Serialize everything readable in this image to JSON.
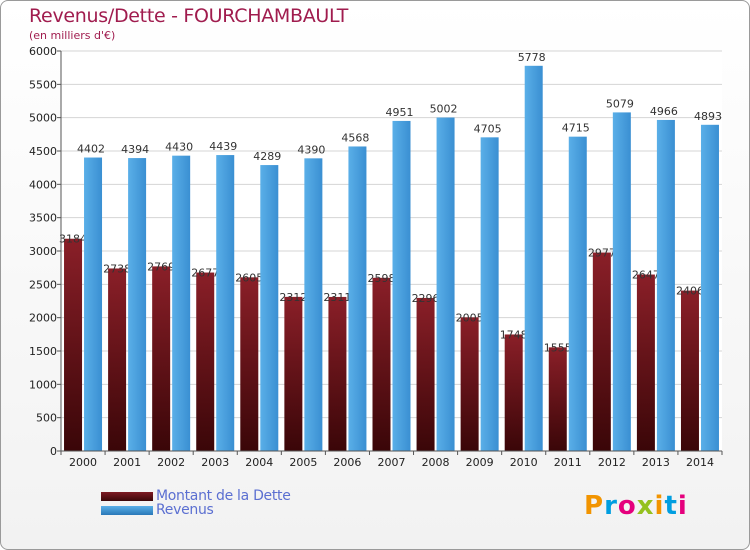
{
  "title": "Revenus/Dette - FOURCHAMBAULT",
  "subtitle": "(en milliers d'€)",
  "brand": {
    "letters": [
      "P",
      "r",
      "o",
      "x",
      "i",
      "t",
      "i"
    ],
    "colors": [
      "#f29400",
      "#009ee0",
      "#e5007d",
      "#95c11f",
      "#f29400",
      "#009ee0",
      "#e5007d"
    ]
  },
  "colors": {
    "debt": "#7d1a22",
    "debt_light": "#3a0608",
    "revenue": "#4ea3e0",
    "revenue_dark": "#2a78b8",
    "title": "#a01c4e",
    "legend_text": "#5b6fd1"
  },
  "chart_data": {
    "type": "bar",
    "categories": [
      "2000",
      "2001",
      "2002",
      "2003",
      "2004",
      "2005",
      "2006",
      "2007",
      "2008",
      "2009",
      "2010",
      "2011",
      "2012",
      "2013",
      "2014"
    ],
    "series": [
      {
        "name": "Montant de la Dette",
        "values": [
          3184,
          2738,
          2769,
          2677,
          2605,
          2312,
          2311,
          2598,
          2296,
          2005,
          1748,
          1555,
          2977,
          2647,
          2406
        ],
        "labels": [
          "3184",
          "2738",
          "2769",
          "2677",
          "2605",
          "2312",
          "2311",
          "2598",
          "2296",
          "2005",
          "1748",
          "1555",
          "2977",
          "2647",
          "2406"
        ]
      },
      {
        "name": "Revenus",
        "values": [
          4402,
          4394,
          4430,
          4439,
          4289,
          4390,
          4568,
          4951,
          5002,
          4705,
          5778,
          4715,
          5079,
          4966,
          4893
        ],
        "labels": [
          "4402",
          "4394",
          "4430",
          "4439",
          "4289",
          "4390",
          "4568",
          "4951",
          "5002",
          "4705",
          "5778",
          "4715",
          "5079",
          "4966",
          "4893"
        ]
      }
    ],
    "ylim": [
      0,
      6000
    ],
    "yticks": [
      "0",
      "500",
      "1000",
      "1500",
      "2000",
      "2500",
      "3000",
      "3500",
      "4000",
      "4500",
      "5000",
      "5500",
      "6000"
    ],
    "grid": true,
    "legend": "bottom-left",
    "xlabel": "",
    "ylabel": ""
  }
}
